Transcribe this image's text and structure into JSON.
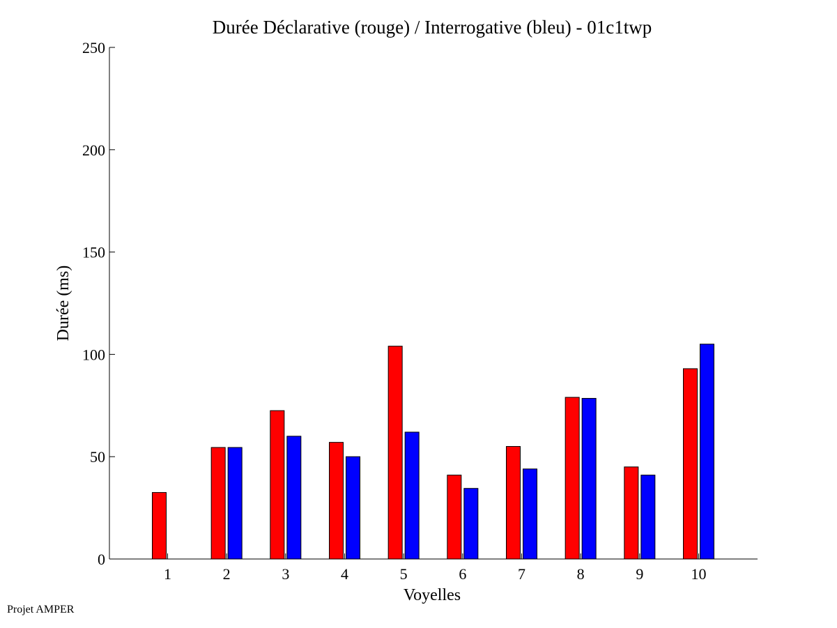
{
  "chart_data": {
    "type": "bar",
    "title": "Durée Déclarative (rouge) / Interrogative (bleu) - 01c1twp",
    "xlabel": "Voyelles",
    "ylabel": "Durée (ms)",
    "ylim": [
      0,
      250
    ],
    "yticks": [
      "0",
      "50",
      "100",
      "150",
      "200",
      "250"
    ],
    "categories": [
      "1",
      "2",
      "3",
      "4",
      "5",
      "6",
      "7",
      "8",
      "9",
      "10"
    ],
    "series": [
      {
        "color": "#ff0000",
        "values": [
          32.5,
          54.5,
          72.5,
          57,
          104,
          41,
          55,
          79,
          45,
          93
        ]
      },
      {
        "color": "#0000ff",
        "values": [
          0,
          54.5,
          60,
          50,
          62,
          34.5,
          44,
          78.5,
          41,
          105
        ]
      }
    ],
    "grid": false,
    "legend": "none"
  },
  "footer": {
    "text": "Projet AMPER"
  }
}
